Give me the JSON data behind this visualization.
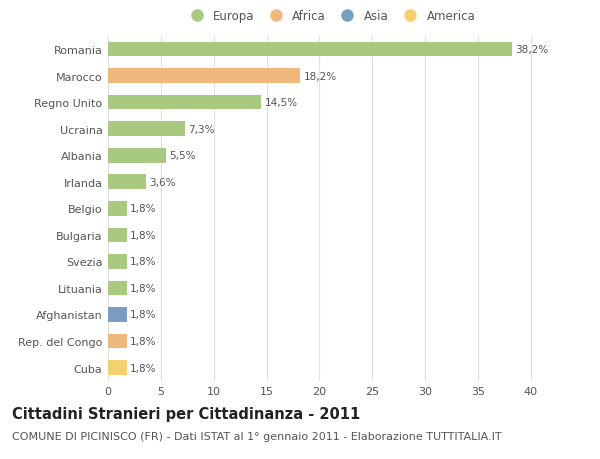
{
  "categories": [
    "Romania",
    "Marocco",
    "Regno Unito",
    "Ucraina",
    "Albania",
    "Irlanda",
    "Belgio",
    "Bulgaria",
    "Svezia",
    "Lituania",
    "Afghanistan",
    "Rep. del Congo",
    "Cuba"
  ],
  "values": [
    38.2,
    18.2,
    14.5,
    7.3,
    5.5,
    3.6,
    1.8,
    1.8,
    1.8,
    1.8,
    1.8,
    1.8,
    1.8
  ],
  "labels": [
    "38,2%",
    "18,2%",
    "14,5%",
    "7,3%",
    "5,5%",
    "3,6%",
    "1,8%",
    "1,8%",
    "1,8%",
    "1,8%",
    "1,8%",
    "1,8%",
    "1,8%"
  ],
  "colors": [
    "#a8c97f",
    "#f0b87a",
    "#a8c97f",
    "#a8c97f",
    "#a8c97f",
    "#a8c97f",
    "#a8c97f",
    "#a8c97f",
    "#a8c97f",
    "#a8c97f",
    "#7b9dc4",
    "#f0b87a",
    "#f5d06e"
  ],
  "legend_labels": [
    "Europa",
    "Africa",
    "Asia",
    "America"
  ],
  "legend_colors": [
    "#a8c97f",
    "#f0b87a",
    "#7b9dc4",
    "#f5d06e"
  ],
  "title": "Cittadini Stranieri per Cittadinanza - 2011",
  "subtitle": "COMUNE DI PICINISCO (FR) - Dati ISTAT al 1° gennaio 2011 - Elaborazione TUTTITALIA.IT",
  "xlim": [
    0,
    42
  ],
  "xticks": [
    0,
    5,
    10,
    15,
    20,
    25,
    30,
    35,
    40
  ],
  "background_color": "#ffffff",
  "grid_color": "#e0e0e0",
  "bar_height": 0.55,
  "title_fontsize": 10.5,
  "subtitle_fontsize": 8,
  "label_fontsize": 7.5,
  "tick_fontsize": 8,
  "legend_fontsize": 8.5,
  "text_color": "#555555",
  "title_color": "#222222"
}
